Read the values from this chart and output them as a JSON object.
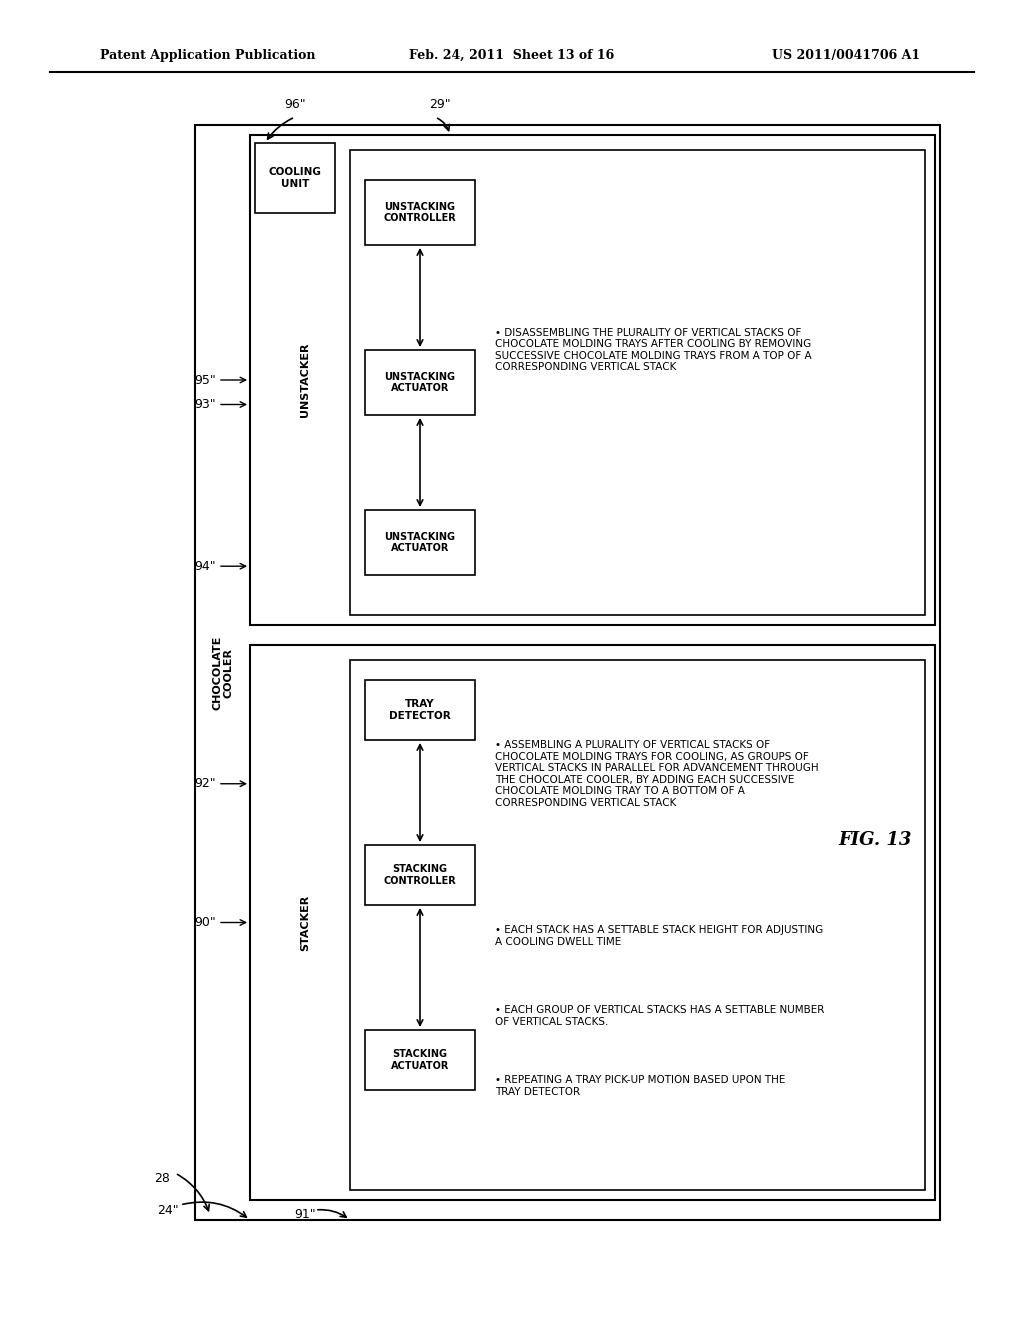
{
  "bg_color": "#ffffff",
  "header_left": "Patent Application Publication",
  "header_mid": "Feb. 24, 2011  Sheet 13 of 16",
  "header_right": "US 2011/0041706 A1",
  "fig_label": "FIG. 13"
}
